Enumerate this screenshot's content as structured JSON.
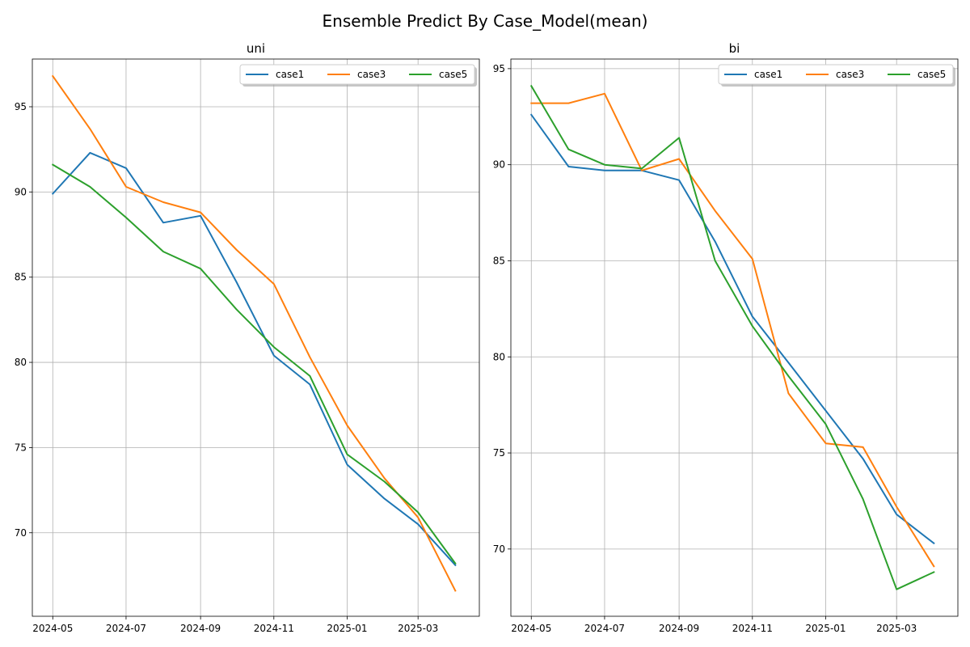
{
  "figure": {
    "title": "Ensemble Predict By Case_Model(mean)"
  },
  "chart_data": [
    {
      "type": "line",
      "title": "uni",
      "xlabel": "",
      "ylabel": "",
      "x": [
        "2024-05",
        "2024-06",
        "2024-07",
        "2024-08",
        "2024-09",
        "2024-10",
        "2024-11",
        "2024-12",
        "2025-01",
        "2025-02",
        "2025-03",
        "2025-04"
      ],
      "x_ticks": [
        "2024-05",
        "2024-07",
        "2024-09",
        "2024-11",
        "2025-01",
        "2025-03"
      ],
      "y_ticks": [
        70,
        75,
        80,
        85,
        90,
        95
      ],
      "xlim": [
        "2024-04-14",
        "2025-04-21"
      ],
      "ylim": [
        65.1,
        97.8
      ],
      "grid": true,
      "legend": "top-right",
      "series": [
        {
          "name": "case1",
          "color": "#1f77b4",
          "values": [
            89.9,
            92.3,
            91.4,
            88.2,
            88.6,
            84.7,
            80.4,
            78.7,
            74.0,
            72.0,
            70.5,
            68.1
          ]
        },
        {
          "name": "case3",
          "color": "#ff7f0e",
          "values": [
            96.8,
            93.7,
            90.3,
            89.4,
            88.8,
            86.6,
            84.6,
            80.3,
            76.3,
            73.2,
            70.9,
            66.6
          ]
        },
        {
          "name": "case5",
          "color": "#2ca02c",
          "values": [
            91.6,
            90.3,
            88.5,
            86.5,
            85.5,
            83.1,
            80.9,
            79.2,
            74.6,
            73.0,
            71.2,
            68.2
          ]
        }
      ]
    },
    {
      "type": "line",
      "title": "bi",
      "xlabel": "",
      "ylabel": "",
      "x": [
        "2024-05",
        "2024-06",
        "2024-07",
        "2024-08",
        "2024-09",
        "2024-10",
        "2024-11",
        "2024-12",
        "2025-01",
        "2025-02",
        "2025-03",
        "2025-04"
      ],
      "x_ticks": [
        "2024-05",
        "2024-07",
        "2024-09",
        "2024-11",
        "2025-01",
        "2025-03"
      ],
      "y_ticks": [
        70,
        75,
        80,
        85,
        90,
        95
      ],
      "xlim": [
        "2024-04-14",
        "2025-04-21"
      ],
      "ylim": [
        66.5,
        95.5
      ],
      "grid": true,
      "legend": "top-right",
      "series": [
        {
          "name": "case1",
          "color": "#1f77b4",
          "values": [
            92.6,
            89.9,
            89.7,
            89.7,
            89.2,
            86.0,
            82.1,
            79.7,
            77.2,
            74.7,
            71.8,
            70.3
          ]
        },
        {
          "name": "case3",
          "color": "#ff7f0e",
          "values": [
            93.2,
            93.2,
            93.7,
            89.7,
            90.3,
            87.6,
            85.1,
            78.1,
            75.5,
            75.3,
            72.2,
            69.1
          ]
        },
        {
          "name": "case5",
          "color": "#2ca02c",
          "values": [
            94.1,
            90.8,
            90.0,
            89.8,
            91.4,
            85.0,
            81.6,
            79.0,
            76.5,
            72.6,
            67.9,
            68.8
          ]
        }
      ]
    }
  ]
}
